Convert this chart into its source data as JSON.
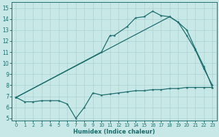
{
  "xlabel": "Humidex (Indice chaleur)",
  "bg_color": "#c8e8e8",
  "line_color": "#1a6b6b",
  "grid_color": "#a8d0d0",
  "xlim": [
    -0.5,
    23.5
  ],
  "ylim": [
    4.8,
    15.5
  ],
  "xticks": [
    0,
    1,
    2,
    3,
    4,
    5,
    6,
    7,
    8,
    9,
    10,
    11,
    12,
    13,
    14,
    15,
    16,
    17,
    18,
    19,
    20,
    21,
    22,
    23
  ],
  "yticks": [
    5,
    6,
    7,
    8,
    9,
    10,
    11,
    12,
    13,
    14,
    15
  ],
  "line1_x": [
    0,
    1,
    2,
    3,
    4,
    5,
    6,
    7,
    8,
    9,
    10,
    11,
    12,
    13,
    14,
    15,
    16,
    17,
    18,
    19,
    20,
    21,
    22,
    23
  ],
  "line1_y": [
    6.9,
    6.5,
    6.5,
    6.6,
    6.6,
    6.6,
    6.3,
    5.0,
    6.0,
    7.3,
    7.1,
    7.2,
    7.3,
    7.4,
    7.5,
    7.5,
    7.6,
    7.6,
    7.7,
    7.7,
    7.8,
    7.8,
    7.8,
    7.8
  ],
  "line2_x": [
    0,
    10,
    11,
    11.5,
    13,
    14,
    15,
    16,
    17,
    18,
    19,
    20,
    21,
    22,
    23
  ],
  "line2_y": [
    6.9,
    11.0,
    12.5,
    12.5,
    13.3,
    14.1,
    14.2,
    14.7,
    14.3,
    14.2,
    13.7,
    13.0,
    11.3,
    9.7,
    7.8
  ],
  "line3_x": [
    0,
    18,
    19,
    20,
    21,
    22,
    23
  ],
  "line3_y": [
    6.9,
    14.2,
    13.7,
    12.5,
    11.2,
    9.5,
    8.0
  ]
}
